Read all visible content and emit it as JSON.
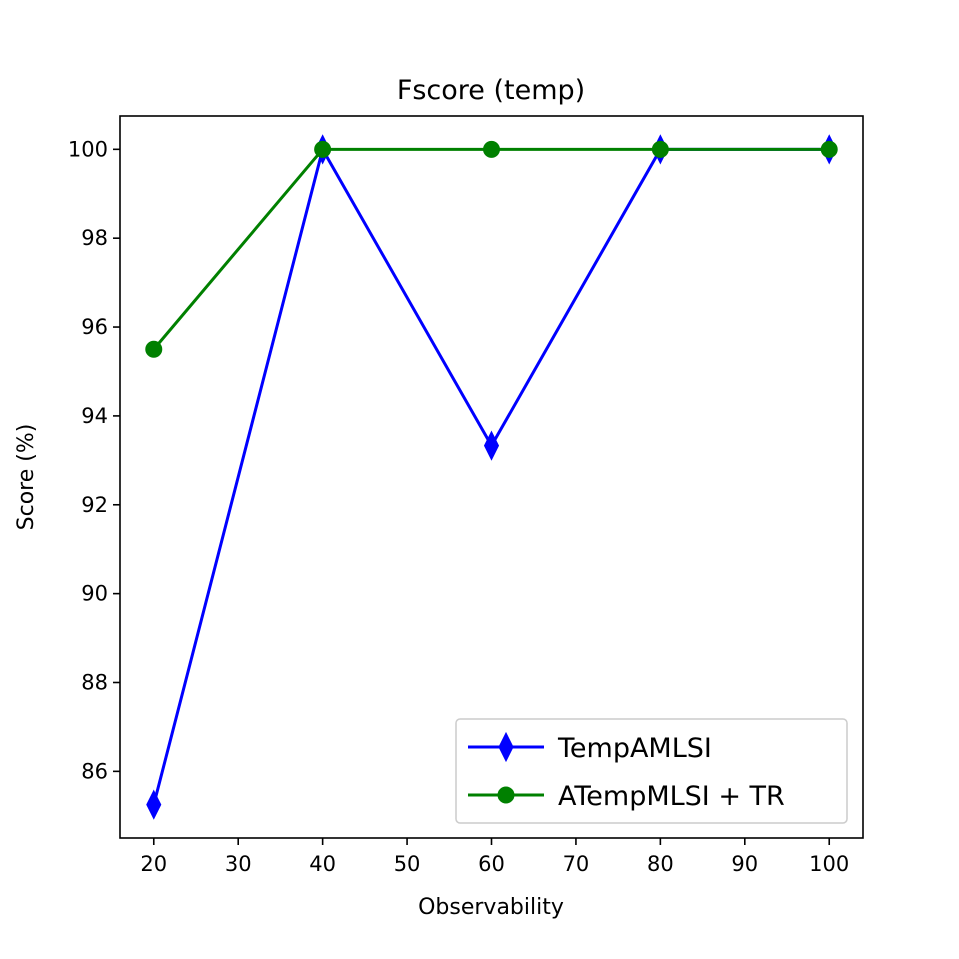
{
  "chart_data": {
    "type": "line",
    "title": "Fscore (temp)",
    "xlabel": "Observability",
    "ylabel": "Score (%)",
    "x": [
      20,
      40,
      60,
      80,
      100
    ],
    "xlim": [
      16,
      104
    ],
    "ylim": [
      84.5,
      100.75
    ],
    "x_ticks": [
      20,
      30,
      40,
      50,
      60,
      70,
      80,
      90,
      100
    ],
    "y_ticks": [
      86,
      88,
      90,
      92,
      94,
      96,
      98,
      100
    ],
    "grid": false,
    "legend_position": "lower-right",
    "series": [
      {
        "name": "TempAMLSI",
        "values": [
          85.25,
          100,
          93.33,
          100,
          100
        ],
        "color": "#0000ff",
        "marker": "diamond"
      },
      {
        "name": "ATempMLSI + TR",
        "values": [
          95.5,
          100,
          100,
          100,
          100
        ],
        "color": "#008000",
        "marker": "circle"
      }
    ]
  }
}
